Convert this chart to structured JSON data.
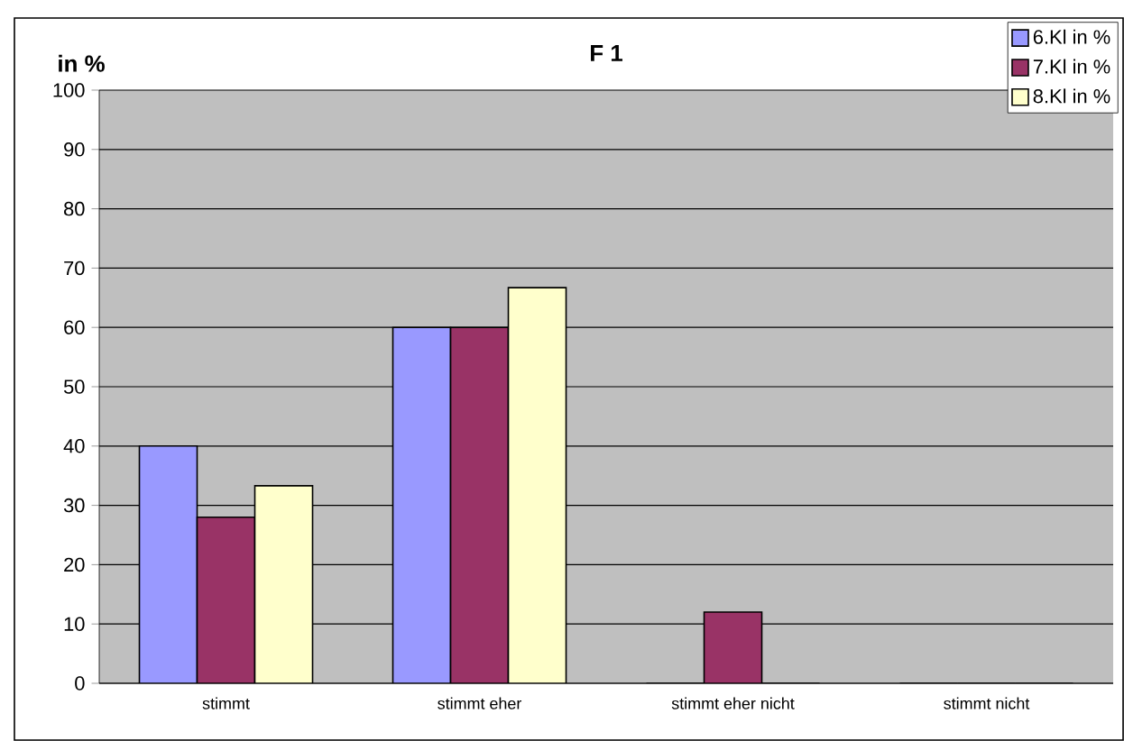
{
  "chart_data": {
    "type": "bar",
    "title": "F 1",
    "ylabel": "in %",
    "categories": [
      "stimmt",
      "stimmt eher",
      "stimmt eher nicht",
      "stimmt nicht"
    ],
    "series": [
      {
        "name": "6.Kl in %",
        "color": "#9999ff",
        "values": [
          40,
          60,
          0,
          0
        ]
      },
      {
        "name": "7.Kl in %",
        "color": "#993366",
        "values": [
          28,
          60,
          12,
          0
        ]
      },
      {
        "name": "8.Kl in %",
        "color": "#ffffcc",
        "values": [
          33.3,
          66.7,
          0,
          0
        ]
      }
    ],
    "ylim": [
      0,
      100
    ],
    "yticks": [
      0,
      10,
      20,
      30,
      40,
      50,
      60,
      70,
      80,
      90,
      100
    ],
    "grid": "y",
    "legend": "top right"
  }
}
